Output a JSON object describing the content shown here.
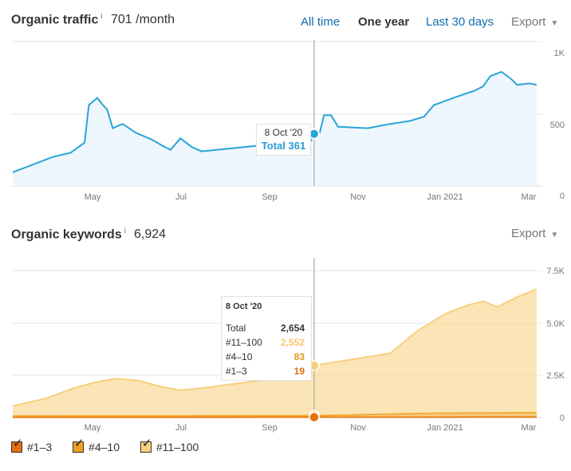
{
  "traffic": {
    "title": "Organic traffic",
    "info": "i",
    "value": "701 /month",
    "ranges": [
      "All time",
      "One year",
      "Last 30 days"
    ],
    "active_range": "One year",
    "export_label": "Export",
    "tooltip": {
      "date": "8 Oct '20",
      "total_label": "Total 361"
    }
  },
  "keywords": {
    "title": "Organic keywords",
    "info": "i",
    "value": "6,924",
    "export_label": "Export",
    "tooltip": {
      "date": "8 Oct '20",
      "rows": [
        {
          "label": "Total",
          "value": "2,654",
          "color": "#333333"
        },
        {
          "label": "#11–100",
          "value": "2,552",
          "color": "#f8c773"
        },
        {
          "label": "#4–10",
          "value": "83",
          "color": "#e8961f"
        },
        {
          "label": "#1–3",
          "value": "19",
          "color": "#e5700b"
        }
      ]
    }
  },
  "legend": [
    {
      "label": "#1–3",
      "color": "#e5700b",
      "checked": true
    },
    {
      "label": "#4–10",
      "color": "#f0a11f",
      "checked": true
    },
    {
      "label": "#11–100",
      "color": "#f8cf7c",
      "checked": true
    }
  ],
  "colors": {
    "traffic_line": "#29a4d8",
    "traffic_fill": "#eef7fd",
    "grid": "#e6e6e6",
    "cursor": "#999999"
  },
  "chart_data": [
    {
      "type": "area",
      "title": "Organic traffic",
      "x_tick_labels": [
        "May",
        "Jul",
        "Sep",
        "Nov",
        "Jan 2021",
        "Mar"
      ],
      "y_tick_labels": [
        "0",
        "500",
        "1K"
      ],
      "ylim": [
        0,
        1000
      ],
      "grid": true,
      "series": [
        {
          "name": "Organic traffic",
          "color": "#29a4d8",
          "points": [
            [
              "2020-03-08",
              95
            ],
            [
              "2020-03-20",
              140
            ],
            [
              "2020-04-05",
              200
            ],
            [
              "2020-04-18",
              230
            ],
            [
              "2020-04-28",
              300
            ],
            [
              "2020-05-01",
              560
            ],
            [
              "2020-05-07",
              610
            ],
            [
              "2020-05-11",
              560
            ],
            [
              "2020-05-14",
              530
            ],
            [
              "2020-05-18",
              400
            ],
            [
              "2020-05-25",
              430
            ],
            [
              "2020-06-03",
              370
            ],
            [
              "2020-06-15",
              320
            ],
            [
              "2020-06-22",
              280
            ],
            [
              "2020-06-28",
              250
            ],
            [
              "2020-07-05",
              330
            ],
            [
              "2020-07-13",
              270
            ],
            [
              "2020-07-20",
              240
            ],
            [
              "2020-08-10",
              260
            ],
            [
              "2020-08-30",
              280
            ],
            [
              "2020-09-10",
              290
            ],
            [
              "2020-09-25",
              300
            ],
            [
              "2020-10-01",
              340
            ],
            [
              "2020-10-05",
              300
            ],
            [
              "2020-10-08",
              361
            ],
            [
              "2020-10-12",
              370
            ],
            [
              "2020-10-15",
              490
            ],
            [
              "2020-10-20",
              490
            ],
            [
              "2020-10-25",
              410
            ],
            [
              "2020-11-15",
              400
            ],
            [
              "2020-12-01",
              430
            ],
            [
              "2020-12-15",
              450
            ],
            [
              "2020-12-25",
              480
            ],
            [
              "2021-01-01",
              560
            ],
            [
              "2021-01-15",
              610
            ],
            [
              "2021-01-30",
              660
            ],
            [
              "2021-02-05",
              690
            ],
            [
              "2021-02-10",
              760
            ],
            [
              "2021-02-18",
              790
            ],
            [
              "2021-02-25",
              740
            ],
            [
              "2021-03-01",
              700
            ],
            [
              "2021-03-10",
              710
            ],
            [
              "2021-03-15",
              700
            ]
          ]
        }
      ],
      "cursor_date": "2020-10-08"
    },
    {
      "type": "area",
      "title": "Organic keywords",
      "x_tick_labels": [
        "May",
        "Jul",
        "Sep",
        "Nov",
        "Jan 2021",
        "Mar"
      ],
      "y_tick_labels": [
        "0",
        "2.5K",
        "5.0K",
        "7.5K"
      ],
      "ylim": [
        0,
        7500
      ],
      "grid": true,
      "stacked": true,
      "series": [
        {
          "name": "#1–3",
          "color": "#e5700b",
          "points": [
            [
              "2020-03-08",
              15
            ],
            [
              "2020-06-01",
              17
            ],
            [
              "2020-10-08",
              19
            ],
            [
              "2021-01-01",
              22
            ],
            [
              "2021-03-15",
              25
            ]
          ]
        },
        {
          "name": "#4–10",
          "color": "#f0a11f",
          "points": [
            [
              "2020-03-08",
              70
            ],
            [
              "2020-06-01",
              75
            ],
            [
              "2020-10-08",
              83
            ],
            [
              "2021-01-01",
              200
            ],
            [
              "2021-03-15",
              230
            ]
          ]
        },
        {
          "name": "#11–100",
          "color": "#f8cf7c",
          "points": [
            [
              "2020-03-08",
              500
            ],
            [
              "2020-04-01",
              900
            ],
            [
              "2020-04-20",
              1400
            ],
            [
              "2020-05-05",
              1700
            ],
            [
              "2020-05-20",
              1900
            ],
            [
              "2020-06-05",
              1800
            ],
            [
              "2020-06-20",
              1500
            ],
            [
              "2020-07-05",
              1300
            ],
            [
              "2020-07-20",
              1400
            ],
            [
              "2020-08-10",
              1600
            ],
            [
              "2020-09-01",
              1800
            ],
            [
              "2020-10-08",
              2552
            ],
            [
              "2020-11-01",
              2800
            ],
            [
              "2020-12-01",
              3100
            ],
            [
              "2020-12-20",
              4200
            ],
            [
              "2021-01-10",
              5100
            ],
            [
              "2021-01-25",
              5500
            ],
            [
              "2021-02-05",
              5700
            ],
            [
              "2021-02-15",
              5400
            ],
            [
              "2021-03-01",
              5900
            ],
            [
              "2021-03-15",
              6300
            ]
          ]
        }
      ],
      "cursor_date": "2020-10-08"
    }
  ]
}
